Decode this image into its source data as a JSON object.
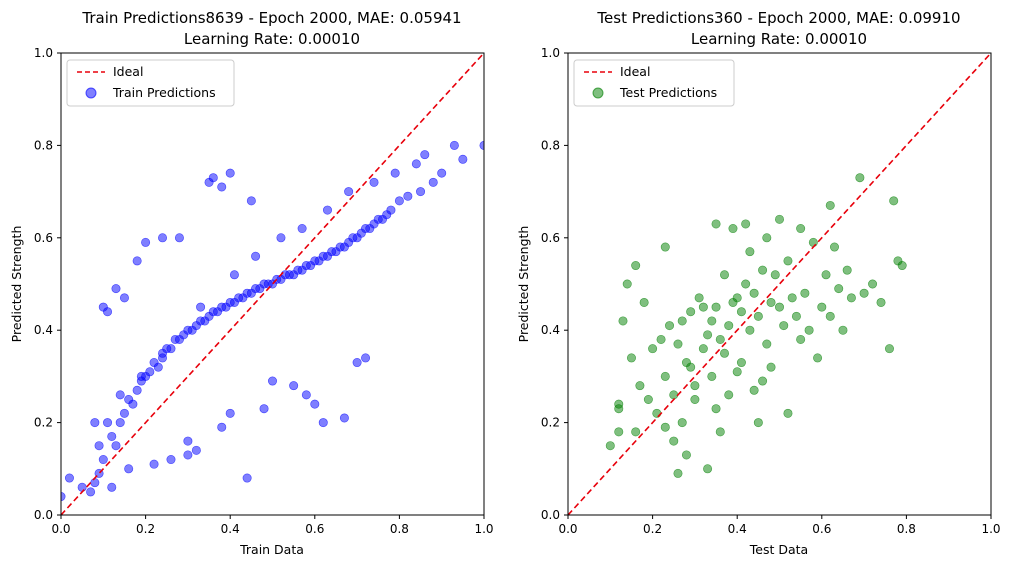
{
  "figure": {
    "background": "#ffffff"
  },
  "chart_data": [
    {
      "type": "scatter",
      "title": "Train Predictions8639 - Epoch 2000, MAE: 0.05941",
      "subtitle": "Learning Rate: 0.00010",
      "xlabel": "Train Data",
      "ylabel": "Predicted Strength",
      "xlim": [
        0.0,
        1.0
      ],
      "ylim": [
        0.0,
        1.0
      ],
      "xticks": [
        "0.0",
        "0.2",
        "0.4",
        "0.6",
        "0.8",
        "1.0"
      ],
      "yticks": [
        "0.0",
        "0.2",
        "0.4",
        "0.6",
        "0.8",
        "1.0"
      ],
      "grid": false,
      "legend_position": "top-left",
      "point_count": 8639,
      "mae": 0.05941,
      "learning_rate": 0.0001,
      "epoch": 2000,
      "series": [
        {
          "name": "Ideal",
          "kind": "line",
          "style": "dashed",
          "color": "#e8000b",
          "x": [
            0.0,
            1.0
          ],
          "y": [
            0.0,
            1.0
          ]
        },
        {
          "name": "Train Predictions",
          "kind": "scatter",
          "color": "#0000ff",
          "alpha": 0.5,
          "x": [
            0.0,
            0.02,
            0.05,
            0.07,
            0.08,
            0.09,
            0.1,
            0.11,
            0.12,
            0.13,
            0.14,
            0.15,
            0.16,
            0.17,
            0.18,
            0.19,
            0.2,
            0.21,
            0.22,
            0.23,
            0.24,
            0.25,
            0.26,
            0.27,
            0.28,
            0.29,
            0.3,
            0.31,
            0.32,
            0.33,
            0.34,
            0.35,
            0.36,
            0.37,
            0.38,
            0.39,
            0.4,
            0.41,
            0.42,
            0.43,
            0.44,
            0.45,
            0.46,
            0.47,
            0.48,
            0.49,
            0.5,
            0.51,
            0.52,
            0.53,
            0.54,
            0.55,
            0.56,
            0.57,
            0.58,
            0.59,
            0.6,
            0.61,
            0.62,
            0.63,
            0.64,
            0.65,
            0.66,
            0.67,
            0.68,
            0.69,
            0.7,
            0.71,
            0.72,
            0.73,
            0.74,
            0.75,
            0.76,
            0.77,
            0.78,
            0.8,
            0.82,
            0.85,
            0.88,
            0.9,
            0.95,
            1.0,
            0.1,
            0.11,
            0.13,
            0.15,
            0.18,
            0.2,
            0.24,
            0.28,
            0.36,
            0.4,
            0.45,
            0.35,
            0.38,
            0.22,
            0.32,
            0.3,
            0.6,
            0.58,
            0.62,
            0.7,
            0.5,
            0.48,
            0.67,
            0.72,
            0.44,
            0.55,
            0.4,
            0.38,
            0.3,
            0.26,
            0.16,
            0.12,
            0.09,
            0.08,
            0.14,
            0.19,
            0.24,
            0.33,
            0.41,
            0.46,
            0.52,
            0.57,
            0.63,
            0.68,
            0.74,
            0.79,
            0.84,
            0.86,
            0.93
          ],
          "y": [
            0.04,
            0.08,
            0.06,
            0.05,
            0.07,
            0.15,
            0.12,
            0.2,
            0.17,
            0.15,
            0.2,
            0.22,
            0.25,
            0.24,
            0.27,
            0.29,
            0.3,
            0.31,
            0.33,
            0.32,
            0.35,
            0.36,
            0.36,
            0.38,
            0.38,
            0.39,
            0.4,
            0.4,
            0.41,
            0.42,
            0.42,
            0.43,
            0.44,
            0.44,
            0.45,
            0.45,
            0.46,
            0.46,
            0.47,
            0.47,
            0.48,
            0.48,
            0.49,
            0.49,
            0.5,
            0.5,
            0.5,
            0.51,
            0.51,
            0.52,
            0.52,
            0.52,
            0.53,
            0.53,
            0.54,
            0.54,
            0.55,
            0.55,
            0.56,
            0.56,
            0.57,
            0.57,
            0.58,
            0.58,
            0.59,
            0.6,
            0.6,
            0.61,
            0.62,
            0.62,
            0.63,
            0.64,
            0.64,
            0.65,
            0.66,
            0.68,
            0.69,
            0.7,
            0.72,
            0.74,
            0.77,
            0.8,
            0.45,
            0.44,
            0.49,
            0.47,
            0.55,
            0.59,
            0.6,
            0.6,
            0.73,
            0.74,
            0.68,
            0.72,
            0.71,
            0.11,
            0.14,
            0.13,
            0.24,
            0.26,
            0.2,
            0.33,
            0.29,
            0.23,
            0.21,
            0.34,
            0.08,
            0.28,
            0.22,
            0.19,
            0.16,
            0.12,
            0.1,
            0.06,
            0.09,
            0.2,
            0.26,
            0.3,
            0.34,
            0.45,
            0.52,
            0.56,
            0.6,
            0.62,
            0.66,
            0.7,
            0.72,
            0.74,
            0.76,
            0.78,
            0.8
          ]
        }
      ]
    },
    {
      "type": "scatter",
      "title": "Test Predictions360 - Epoch 2000, MAE: 0.09910",
      "subtitle": "Learning Rate: 0.00010",
      "xlabel": "Test Data",
      "ylabel": "Predicted Strength",
      "xlim": [
        0.0,
        1.0
      ],
      "ylim": [
        0.0,
        1.0
      ],
      "xticks": [
        "0.0",
        "0.2",
        "0.4",
        "0.6",
        "0.8",
        "1.0"
      ],
      "yticks": [
        "0.0",
        "0.2",
        "0.4",
        "0.6",
        "0.8",
        "1.0"
      ],
      "grid": false,
      "legend_position": "top-left",
      "point_count": 360,
      "mae": 0.0991,
      "learning_rate": 0.0001,
      "epoch": 2000,
      "series": [
        {
          "name": "Ideal",
          "kind": "line",
          "style": "dashed",
          "color": "#e8000b",
          "x": [
            0.0,
            1.0
          ],
          "y": [
            0.0,
            1.0
          ]
        },
        {
          "name": "Test Predictions",
          "kind": "scatter",
          "color": "#008000",
          "alpha": 0.5,
          "x": [
            0.1,
            0.12,
            0.12,
            0.13,
            0.15,
            0.16,
            0.17,
            0.18,
            0.19,
            0.2,
            0.21,
            0.22,
            0.23,
            0.24,
            0.25,
            0.26,
            0.27,
            0.28,
            0.29,
            0.3,
            0.31,
            0.32,
            0.33,
            0.34,
            0.35,
            0.36,
            0.37,
            0.38,
            0.39,
            0.4,
            0.41,
            0.42,
            0.43,
            0.44,
            0.45,
            0.46,
            0.47,
            0.48,
            0.49,
            0.5,
            0.51,
            0.52,
            0.53,
            0.54,
            0.55,
            0.56,
            0.57,
            0.58,
            0.59,
            0.6,
            0.61,
            0.62,
            0.63,
            0.64,
            0.65,
            0.66,
            0.67,
            0.69,
            0.7,
            0.72,
            0.74,
            0.76,
            0.77,
            0.78,
            0.79,
            0.23,
            0.23,
            0.25,
            0.33,
            0.35,
            0.36,
            0.42,
            0.45,
            0.52,
            0.16,
            0.14,
            0.12,
            0.26,
            0.3,
            0.28,
            0.39,
            0.43,
            0.47,
            0.5,
            0.55,
            0.62,
            0.38,
            0.35,
            0.44,
            0.4,
            0.41,
            0.37,
            0.34,
            0.46,
            0.48,
            0.32,
            0.29,
            0.27
          ],
          "y": [
            0.15,
            0.23,
            0.18,
            0.42,
            0.34,
            0.54,
            0.28,
            0.46,
            0.25,
            0.36,
            0.22,
            0.38,
            0.3,
            0.41,
            0.26,
            0.37,
            0.42,
            0.33,
            0.44,
            0.28,
            0.47,
            0.36,
            0.39,
            0.42,
            0.45,
            0.38,
            0.52,
            0.41,
            0.46,
            0.47,
            0.44,
            0.5,
            0.4,
            0.48,
            0.43,
            0.53,
            0.37,
            0.46,
            0.52,
            0.45,
            0.41,
            0.55,
            0.47,
            0.43,
            0.38,
            0.48,
            0.4,
            0.59,
            0.34,
            0.45,
            0.52,
            0.43,
            0.58,
            0.49,
            0.4,
            0.53,
            0.47,
            0.73,
            0.48,
            0.5,
            0.46,
            0.36,
            0.68,
            0.55,
            0.54,
            0.58,
            0.19,
            0.16,
            0.1,
            0.63,
            0.18,
            0.63,
            0.2,
            0.22,
            0.18,
            0.5,
            0.24,
            0.09,
            0.25,
            0.13,
            0.62,
            0.57,
            0.6,
            0.64,
            0.62,
            0.67,
            0.26,
            0.23,
            0.27,
            0.31,
            0.33,
            0.35,
            0.3,
            0.29,
            0.32,
            0.45,
            0.32,
            0.2
          ]
        }
      ]
    }
  ]
}
